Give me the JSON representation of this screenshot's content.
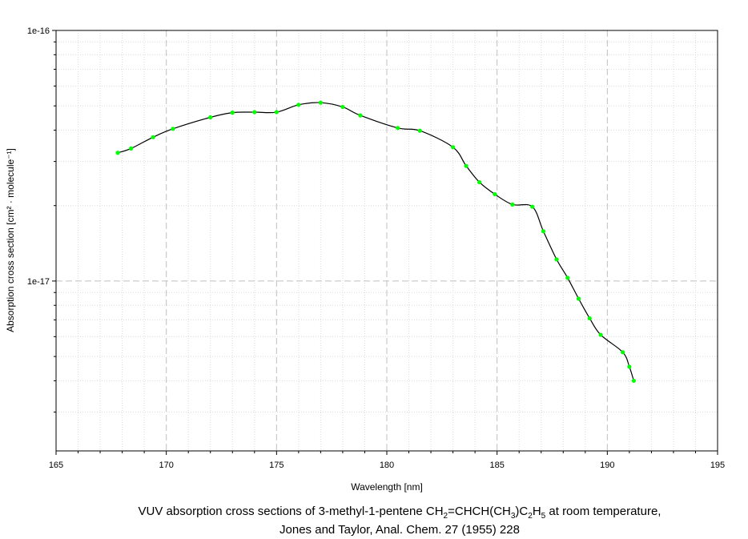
{
  "chart_data": {
    "type": "line",
    "xlabel": "Wavelength [nm]",
    "ylabel": "Absorption cross section [cm² · molecule⁻¹]",
    "xlim": [
      165,
      195
    ],
    "ylim": [
      2.1e-18,
      1e-16
    ],
    "yscale": "log",
    "grid": true,
    "x_ticks": [
      "165",
      "170",
      "175",
      "180",
      "185",
      "190",
      "195"
    ],
    "y_ticks": [
      "1e-17",
      "1e-16"
    ],
    "series": [
      {
        "color": "#00ff00",
        "line_color": "#000000",
        "x": [
          167.8,
          168.4,
          169.4,
          170.3,
          172.0,
          173.0,
          174.0,
          175.0,
          176.0,
          177.0,
          178.0,
          178.8,
          180.5,
          181.5,
          183.0,
          183.6,
          184.2,
          184.9,
          185.7,
          186.6,
          187.1,
          187.7,
          188.2,
          188.7,
          189.2,
          189.7,
          190.7,
          191.0,
          191.2
        ],
        "y": [
          3.25e-17,
          3.38e-17,
          3.75e-17,
          4.05e-17,
          4.5e-17,
          4.7e-17,
          4.72e-17,
          4.72e-17,
          5.05e-17,
          5.15e-17,
          4.95e-17,
          4.58e-17,
          4.08e-17,
          3.98e-17,
          3.42e-17,
          2.88e-17,
          2.48e-17,
          2.22e-17,
          2.02e-17,
          1.98e-17,
          1.58e-17,
          1.22e-17,
          1.03e-17,
          8.5e-18,
          7.1e-18,
          6.1e-18,
          5.2e-18,
          4.55e-18,
          4e-18
        ]
      }
    ]
  },
  "caption": {
    "line1_prefix": "VUV absorption cross sections of 3-methyl-1-pentene CH",
    "s1": "2",
    "m1": "=CHCH(CH",
    "s2": "3",
    "m2": ")C",
    "s3": "2",
    "m3": "H",
    "s4": "5",
    "line1_suffix": " at room temperature,",
    "line2": "Jones and Taylor, Anal. Chem. 27 (1955) 228"
  }
}
